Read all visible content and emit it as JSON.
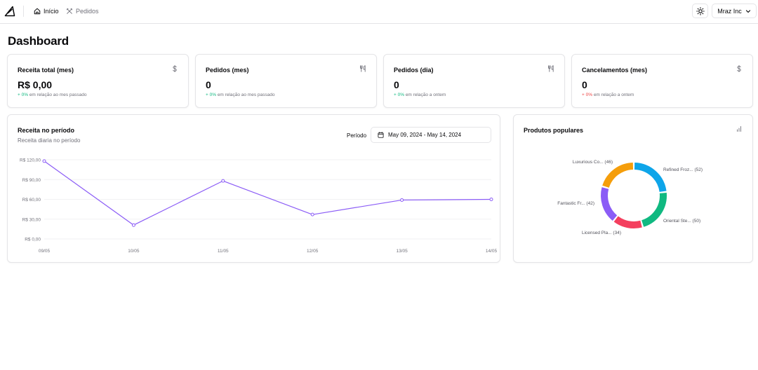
{
  "nav": {
    "home_label": "Início",
    "orders_label": "Pedidos",
    "org_name": "Mraz Inc"
  },
  "page_title": "Dashboard",
  "metrics": [
    {
      "title": "Receita total (mes)",
      "icon": "dollar-icon",
      "value": "R$ 0,00",
      "delta": "+ 0%",
      "delta_text": "em relação ao mes passado",
      "trend": "positive"
    },
    {
      "title": "Pedidos (mes)",
      "icon": "utensils-icon",
      "value": "0",
      "delta": "+ 0%",
      "delta_text": "em relação ao mes passado",
      "trend": "positive"
    },
    {
      "title": "Pedidos (dia)",
      "icon": "utensils-icon",
      "value": "0",
      "delta": "+ 0%",
      "delta_text": "em relação a ontem",
      "trend": "positive"
    },
    {
      "title": "Cancelamentos (mes)",
      "icon": "dollar-icon",
      "value": "0",
      "delta": "+ 0%",
      "delta_text": "em relação a ontem",
      "trend": "negative"
    }
  ],
  "revenue": {
    "title": "Receita no período",
    "subtitle": "Receita diaria no período",
    "period_label": "Período",
    "date_range": "May 09, 2024 - May 14, 2024"
  },
  "popular": {
    "title": "Produtos populares"
  },
  "colors": {
    "line": "#8b5cf6",
    "border": "#e4e4e7",
    "muted": "#71717a",
    "positive": "#10b981",
    "negative": "#ef4444"
  },
  "chart_data": [
    {
      "type": "line",
      "categories": [
        "09/05",
        "10/05",
        "11/05",
        "12/05",
        "13/05",
        "14/05"
      ],
      "values": [
        118,
        21,
        88,
        37,
        59,
        60
      ],
      "y_ticks": [
        "R$ 0,00",
        "R$ 30,00",
        "R$ 60,00",
        "R$ 90,00",
        "R$ 120,00"
      ],
      "ylim": [
        0,
        120
      ],
      "grid": true,
      "color": "#8b5cf6"
    },
    {
      "type": "pie",
      "style": "donut",
      "slices": [
        {
          "label": "Refined Froz...",
          "value": 52,
          "color": "#0ea5e9"
        },
        {
          "label": "Oriental Ste...",
          "value": 50,
          "color": "#10b981"
        },
        {
          "label": "Licensed Pla...",
          "value": 34,
          "color": "#f43f5e"
        },
        {
          "label": "Fantastic Fr...",
          "value": 42,
          "color": "#8b5cf6"
        },
        {
          "label": "Luxurious Co...",
          "value": 46,
          "color": "#f59e0b"
        }
      ]
    }
  ]
}
